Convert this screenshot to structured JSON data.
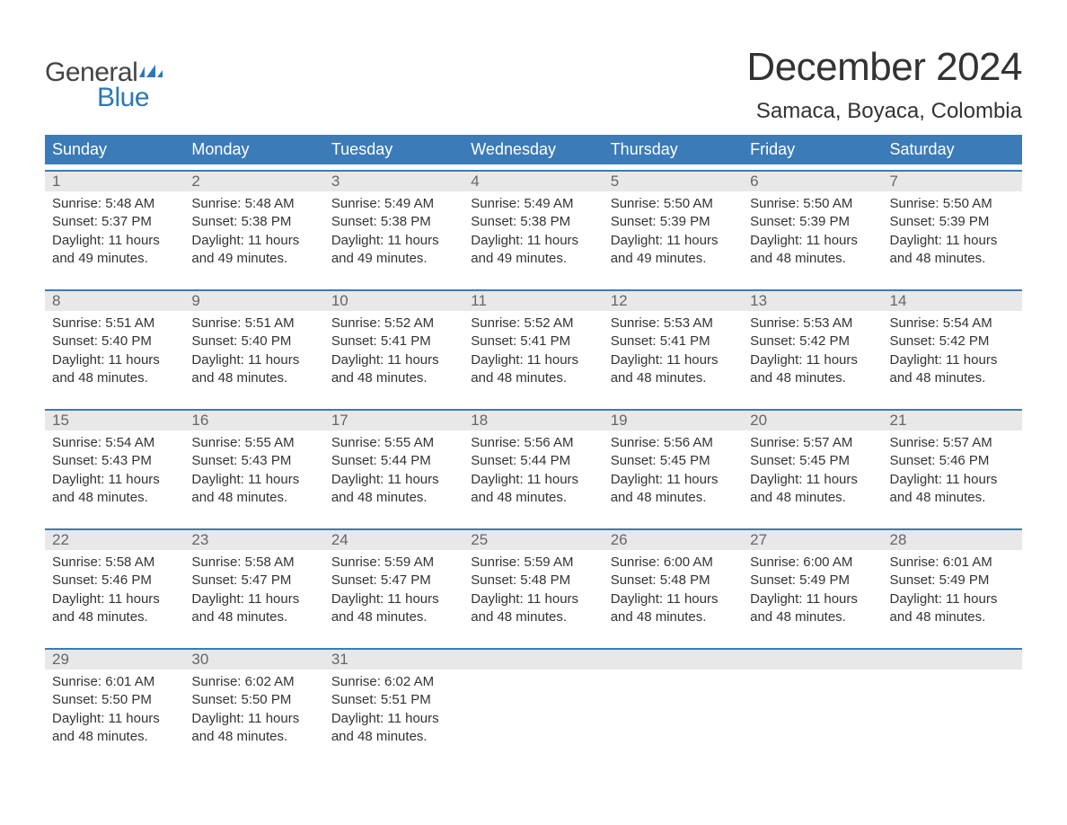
{
  "logo": {
    "text_general": "General",
    "text_blue": "Blue",
    "flag_color": "#2d77b8"
  },
  "title": "December 2024",
  "location": "Samaca, Boyaca, Colombia",
  "header_bg": "#3b7bb8",
  "daynum_bg": "#e8e8e8",
  "week_border_color": "#3b7bb8",
  "weekday_fontsize": 18,
  "title_fontsize": 44,
  "location_fontsize": 24,
  "weekdays": [
    "Sunday",
    "Monday",
    "Tuesday",
    "Wednesday",
    "Thursday",
    "Friday",
    "Saturday"
  ],
  "weeks": [
    [
      {
        "n": "1",
        "sr": "5:48 AM",
        "ss": "5:37 PM",
        "dl": "11 hours and 49 minutes."
      },
      {
        "n": "2",
        "sr": "5:48 AM",
        "ss": "5:38 PM",
        "dl": "11 hours and 49 minutes."
      },
      {
        "n": "3",
        "sr": "5:49 AM",
        "ss": "5:38 PM",
        "dl": "11 hours and 49 minutes."
      },
      {
        "n": "4",
        "sr": "5:49 AM",
        "ss": "5:38 PM",
        "dl": "11 hours and 49 minutes."
      },
      {
        "n": "5",
        "sr": "5:50 AM",
        "ss": "5:39 PM",
        "dl": "11 hours and 49 minutes."
      },
      {
        "n": "6",
        "sr": "5:50 AM",
        "ss": "5:39 PM",
        "dl": "11 hours and 48 minutes."
      },
      {
        "n": "7",
        "sr": "5:50 AM",
        "ss": "5:39 PM",
        "dl": "11 hours and 48 minutes."
      }
    ],
    [
      {
        "n": "8",
        "sr": "5:51 AM",
        "ss": "5:40 PM",
        "dl": "11 hours and 48 minutes."
      },
      {
        "n": "9",
        "sr": "5:51 AM",
        "ss": "5:40 PM",
        "dl": "11 hours and 48 minutes."
      },
      {
        "n": "10",
        "sr": "5:52 AM",
        "ss": "5:41 PM",
        "dl": "11 hours and 48 minutes."
      },
      {
        "n": "11",
        "sr": "5:52 AM",
        "ss": "5:41 PM",
        "dl": "11 hours and 48 minutes."
      },
      {
        "n": "12",
        "sr": "5:53 AM",
        "ss": "5:41 PM",
        "dl": "11 hours and 48 minutes."
      },
      {
        "n": "13",
        "sr": "5:53 AM",
        "ss": "5:42 PM",
        "dl": "11 hours and 48 minutes."
      },
      {
        "n": "14",
        "sr": "5:54 AM",
        "ss": "5:42 PM",
        "dl": "11 hours and 48 minutes."
      }
    ],
    [
      {
        "n": "15",
        "sr": "5:54 AM",
        "ss": "5:43 PM",
        "dl": "11 hours and 48 minutes."
      },
      {
        "n": "16",
        "sr": "5:55 AM",
        "ss": "5:43 PM",
        "dl": "11 hours and 48 minutes."
      },
      {
        "n": "17",
        "sr": "5:55 AM",
        "ss": "5:44 PM",
        "dl": "11 hours and 48 minutes."
      },
      {
        "n": "18",
        "sr": "5:56 AM",
        "ss": "5:44 PM",
        "dl": "11 hours and 48 minutes."
      },
      {
        "n": "19",
        "sr": "5:56 AM",
        "ss": "5:45 PM",
        "dl": "11 hours and 48 minutes."
      },
      {
        "n": "20",
        "sr": "5:57 AM",
        "ss": "5:45 PM",
        "dl": "11 hours and 48 minutes."
      },
      {
        "n": "21",
        "sr": "5:57 AM",
        "ss": "5:46 PM",
        "dl": "11 hours and 48 minutes."
      }
    ],
    [
      {
        "n": "22",
        "sr": "5:58 AM",
        "ss": "5:46 PM",
        "dl": "11 hours and 48 minutes."
      },
      {
        "n": "23",
        "sr": "5:58 AM",
        "ss": "5:47 PM",
        "dl": "11 hours and 48 minutes."
      },
      {
        "n": "24",
        "sr": "5:59 AM",
        "ss": "5:47 PM",
        "dl": "11 hours and 48 minutes."
      },
      {
        "n": "25",
        "sr": "5:59 AM",
        "ss": "5:48 PM",
        "dl": "11 hours and 48 minutes."
      },
      {
        "n": "26",
        "sr": "6:00 AM",
        "ss": "5:48 PM",
        "dl": "11 hours and 48 minutes."
      },
      {
        "n": "27",
        "sr": "6:00 AM",
        "ss": "5:49 PM",
        "dl": "11 hours and 48 minutes."
      },
      {
        "n": "28",
        "sr": "6:01 AM",
        "ss": "5:49 PM",
        "dl": "11 hours and 48 minutes."
      }
    ],
    [
      {
        "n": "29",
        "sr": "6:01 AM",
        "ss": "5:50 PM",
        "dl": "11 hours and 48 minutes."
      },
      {
        "n": "30",
        "sr": "6:02 AM",
        "ss": "5:50 PM",
        "dl": "11 hours and 48 minutes."
      },
      {
        "n": "31",
        "sr": "6:02 AM",
        "ss": "5:51 PM",
        "dl": "11 hours and 48 minutes."
      },
      null,
      null,
      null,
      null
    ]
  ],
  "labels": {
    "sunrise": "Sunrise:",
    "sunset": "Sunset:",
    "daylight": "Daylight:"
  }
}
